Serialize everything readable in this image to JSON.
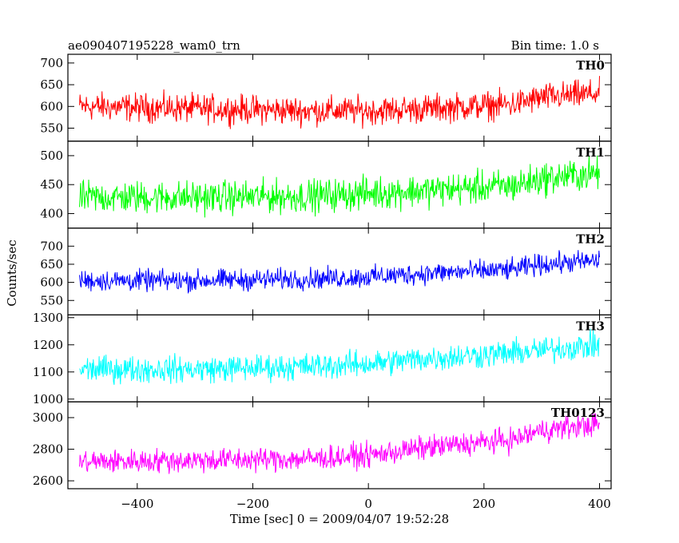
{
  "header": {
    "title": "ae090407195228_wam0_trn",
    "bin_time": "Bin time: 1.0 s"
  },
  "ylabel": "Counts/sec",
  "xlabel": "Time [sec] 0 = 2009/04/07 19:52:28",
  "chart_data": {
    "type": "line",
    "title": "ae090407195228_wam0_trn",
    "subtitle": "Bin time: 1.0 s",
    "xlabel": "Time [sec] 0 = 2009/04/07 19:52:28",
    "ylabel": "Counts/sec",
    "xlim": [
      -520,
      420
    ],
    "x_ticks": [
      -400,
      -200,
      0,
      200,
      400
    ],
    "bin_time_s": 1.0,
    "x_range": [
      -500,
      400
    ],
    "panels": [
      {
        "name": "TH0",
        "color": "#ff0000",
        "ylim": [
          520,
          720
        ],
        "y_ticks": [
          550,
          600,
          650,
          700
        ],
        "trend_x": [
          -500,
          -300,
          -100,
          0,
          100,
          250,
          300,
          400
        ],
        "trend_y": [
          600,
          595,
          590,
          590,
          595,
          605,
          620,
          630
        ],
        "noise_amplitude": 30
      },
      {
        "name": "TH1",
        "color": "#00ff00",
        "ylim": [
          375,
          525
        ],
        "y_ticks": [
          400,
          450,
          500
        ],
        "trend_x": [
          -500,
          -300,
          -100,
          0,
          100,
          250,
          300,
          400
        ],
        "trend_y": [
          428,
          428,
          430,
          435,
          440,
          448,
          460,
          470
        ],
        "noise_amplitude": 26
      },
      {
        "name": "TH2",
        "color": "#0000ff",
        "ylim": [
          510,
          750
        ],
        "y_ticks": [
          550,
          600,
          650,
          700
        ],
        "trend_x": [
          -500,
          -300,
          -100,
          0,
          100,
          250,
          300,
          400
        ],
        "trend_y": [
          605,
          605,
          610,
          615,
          625,
          635,
          650,
          660
        ],
        "noise_amplitude": 27
      },
      {
        "name": "TH3",
        "color": "#00ffff",
        "ylim": [
          990,
          1310
        ],
        "y_ticks": [
          1000,
          1100,
          1200,
          1300
        ],
        "trend_x": [
          -500,
          -300,
          -100,
          0,
          100,
          250,
          300,
          400
        ],
        "trend_y": [
          1110,
          1110,
          1120,
          1130,
          1150,
          1170,
          1180,
          1200
        ],
        "noise_amplitude": 45
      },
      {
        "name": "TH0123",
        "color": "#ff00ff",
        "ylim": [
          2550,
          3100
        ],
        "y_ticks": [
          2600,
          2800,
          3000
        ],
        "trend_x": [
          -500,
          -300,
          -100,
          0,
          100,
          250,
          300,
          400
        ],
        "trend_y": [
          2720,
          2730,
          2740,
          2760,
          2810,
          2860,
          2920,
          2960
        ],
        "noise_amplitude": 70
      }
    ]
  }
}
